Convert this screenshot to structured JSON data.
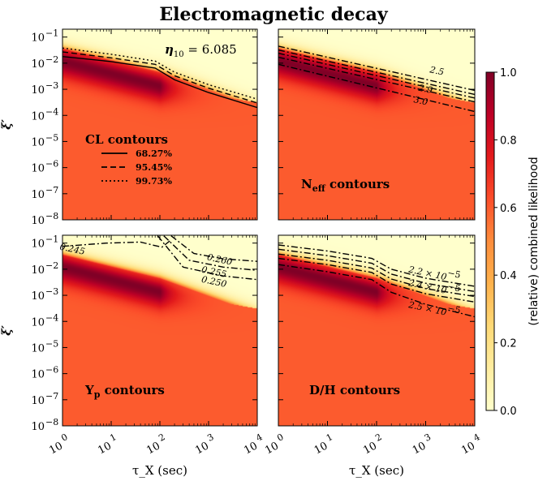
{
  "chart_data": {
    "type": "heatmap",
    "title": "Electromagnetic decay",
    "shared": {
      "xlabel": "τ_X (sec)",
      "ylabel": "ξ′",
      "xscale": "log",
      "yscale": "log",
      "xlim": [
        1,
        10000
      ],
      "ylim": [
        1e-08,
        0.2
      ],
      "xticks": [
        {
          "v": 1,
          "m": "10",
          "e": "0"
        },
        {
          "v": 10,
          "m": "10",
          "e": "1"
        },
        {
          "v": 100,
          "m": "10",
          "e": "2"
        },
        {
          "v": 1000,
          "m": "10",
          "e": "3"
        },
        {
          "v": 10000,
          "m": "10",
          "e": "4"
        }
      ],
      "yticks": [
        {
          "v": 1e-08,
          "m": "10",
          "e": "−8"
        },
        {
          "v": 1e-07,
          "m": "10",
          "e": "−7"
        },
        {
          "v": 1e-06,
          "m": "10",
          "e": "−6"
        },
        {
          "v": 1e-05,
          "m": "10",
          "e": "−5"
        },
        {
          "v": 0.0001,
          "m": "10",
          "e": "−4"
        },
        {
          "v": 0.001,
          "m": "10",
          "e": "−3"
        },
        {
          "v": 0.01,
          "m": "10",
          "e": "−2"
        },
        {
          "v": 0.1,
          "m": "10",
          "e": "−1"
        }
      ]
    },
    "colorbar": {
      "label": "(relative) combined likelihood",
      "range": [
        0,
        1
      ],
      "ticks": [
        "0.0",
        "0.2",
        "0.4",
        "0.6",
        "0.8",
        "1.0"
      ],
      "colormap": "YlOrRd",
      "stops": [
        "#ffffcc",
        "#ffeda0",
        "#fed976",
        "#feb24c",
        "#fd8d3c",
        "#fc4e2a",
        "#e31a1c",
        "#bd0026",
        "#800026"
      ]
    },
    "likelihood_field": {
      "baseline": 0.6,
      "ridge_log_xi": [
        [
          1,
          -1.9
        ],
        [
          100,
          -2.85
        ],
        [
          10000,
          -3.5
        ]
      ],
      "peak_tau_range": [
        1,
        100
      ],
      "peak_value": 1.0,
      "excluded_above_log_xi": [
        [
          1,
          -1.45
        ],
        [
          100,
          -2.35
        ],
        [
          10000,
          -3.7
        ]
      ]
    },
    "panels": [
      {
        "id": "cl",
        "label": "CL contours",
        "eta_label_prefix": "η",
        "eta_sub": "10",
        "eta_value": "= 6.085",
        "legend": [
          {
            "style": "solid",
            "label": "68.27%"
          },
          {
            "style": "dashed",
            "label": "95.45%"
          },
          {
            "style": "dotted",
            "label": "99.73%"
          }
        ],
        "contours": [
          {
            "style": "solid",
            "points": [
              [
                1,
                0.018
              ],
              [
                10,
                0.0115
              ],
              [
                80,
                0.0065
              ],
              [
                200,
                0.0023
              ],
              [
                1000,
                0.00075
              ],
              [
                10000,
                0.0002
              ]
            ]
          },
          {
            "style": "dashed",
            "points": [
              [
                1,
                0.027
              ],
              [
                10,
                0.016
              ],
              [
                80,
                0.009
              ],
              [
                200,
                0.0033
              ],
              [
                1000,
                0.0011
              ],
              [
                10000,
                0.0003
              ]
            ]
          },
          {
            "style": "dotted",
            "points": [
              [
                1,
                0.038
              ],
              [
                10,
                0.022
              ],
              [
                80,
                0.012
              ],
              [
                200,
                0.0045
              ],
              [
                1000,
                0.0015
              ],
              [
                10000,
                0.00042
              ]
            ]
          }
        ]
      },
      {
        "id": "neff",
        "label": "N",
        "label_sub": "eff",
        "label_suffix": " contours",
        "contours": [
          {
            "label": "2.5",
            "points": [
              [
                1,
                0.045
              ],
              [
                10000,
                0.0009
              ]
            ]
          },
          {
            "label": "",
            "points": [
              [
                1,
                0.032
              ],
              [
                10000,
                0.00063
              ]
            ]
          },
          {
            "label": "",
            "points": [
              [
                1,
                0.024
              ],
              [
                10000,
                0.00046
              ]
            ]
          },
          {
            "label": "2.9",
            "points": [
              [
                1,
                0.017
              ],
              [
                10000,
                0.00033
              ]
            ]
          },
          {
            "label": "3.0",
            "points": [
              [
                1,
                0.009
              ],
              [
                10000,
                0.00014
              ]
            ]
          }
        ],
        "contour_labels": [
          {
            "text": "2.5",
            "at": [
              1700,
              0.0052
            ]
          },
          {
            "text": "2.9",
            "at": [
              1000,
              0.00105
            ]
          },
          {
            "text": "3.0",
            "at": [
              800,
              0.00037
            ]
          }
        ]
      },
      {
        "id": "yp",
        "label": "Y",
        "label_sub": "p",
        "label_suffix": " contours",
        "contours": [
          {
            "label": "0.245",
            "points": [
              [
                1,
                0.075
              ],
              [
                8,
                0.1
              ],
              [
                40,
                0.11
              ],
              [
                70,
                0.085
              ],
              [
                110,
                0.07
              ],
              [
                160,
                0.12
              ]
            ]
          },
          {
            "label": "0.260",
            "points": [
              [
                170,
                0.19
              ],
              [
                500,
                0.04
              ],
              [
                2000,
                0.025
              ],
              [
                10000,
                0.02
              ]
            ]
          },
          {
            "label": "0.255",
            "points": [
              [
                120,
                0.19
              ],
              [
                400,
                0.022
              ],
              [
                2000,
                0.012
              ],
              [
                10000,
                0.009
              ]
            ]
          },
          {
            "label": "0.250",
            "points": [
              [
                90,
                0.19
              ],
              [
                300,
                0.012
              ],
              [
                2000,
                0.0055
              ],
              [
                10000,
                0.004
              ]
            ]
          }
        ],
        "contour_labels": [
          {
            "text": "0.245",
            "at": [
              1.6,
              0.06
            ]
          },
          {
            "text": "0.260",
            "at": [
              1700,
              0.024
            ]
          },
          {
            "text": "0.255",
            "at": [
              1300,
              0.0081
            ]
          },
          {
            "text": "0.250",
            "at": [
              1300,
              0.0034
            ]
          }
        ]
      },
      {
        "id": "dh",
        "label": "D/H contours",
        "contours": [
          {
            "label": "2.2 × 10⁻⁵",
            "points": [
              [
                1,
                0.085
              ],
              [
                10,
                0.05
              ],
              [
                80,
                0.026
              ],
              [
                200,
                0.01
              ],
              [
                1000,
                0.0045
              ],
              [
                10000,
                0.0022
              ]
            ]
          },
          {
            "label": "",
            "points": [
              [
                1,
                0.058
              ],
              [
                10,
                0.033
              ],
              [
                80,
                0.017
              ],
              [
                200,
                0.0065
              ],
              [
                1000,
                0.0029
              ],
              [
                10000,
                0.0014
              ]
            ]
          },
          {
            "label": "2.4 × 10⁻⁵",
            "points": [
              [
                1,
                0.038
              ],
              [
                10,
                0.022
              ],
              [
                80,
                0.011
              ],
              [
                200,
                0.0042
              ],
              [
                1000,
                0.0018
              ],
              [
                10000,
                0.0009
              ]
            ]
          },
          {
            "label": "",
            "points": [
              [
                1,
                0.026
              ],
              [
                10,
                0.015
              ],
              [
                80,
                0.0075
              ],
              [
                200,
                0.0027
              ],
              [
                1000,
                0.00115
              ],
              [
                10000,
                0.00055
              ]
            ]
          },
          {
            "label": "2.5 × 10⁻⁵",
            "points": [
              [
                1,
                0.015
              ],
              [
                10,
                0.008
              ],
              [
                80,
                0.004
              ],
              [
                200,
                0.0013
              ],
              [
                1000,
                0.00045
              ],
              [
                10000,
                0.00015
              ]
            ]
          }
        ],
        "contour_labels": [
          {
            "text": "2.2 × 10",
            "exp": "−5",
            "at": [
              1100,
              0.0072
            ]
          },
          {
            "text": "2.4 × 10",
            "exp": "−5",
            "at": [
              1100,
              0.0022
            ]
          },
          {
            "text": "2.5 × 10",
            "exp": "−5",
            "at": [
              1100,
              0.00032
            ]
          }
        ]
      }
    ]
  }
}
